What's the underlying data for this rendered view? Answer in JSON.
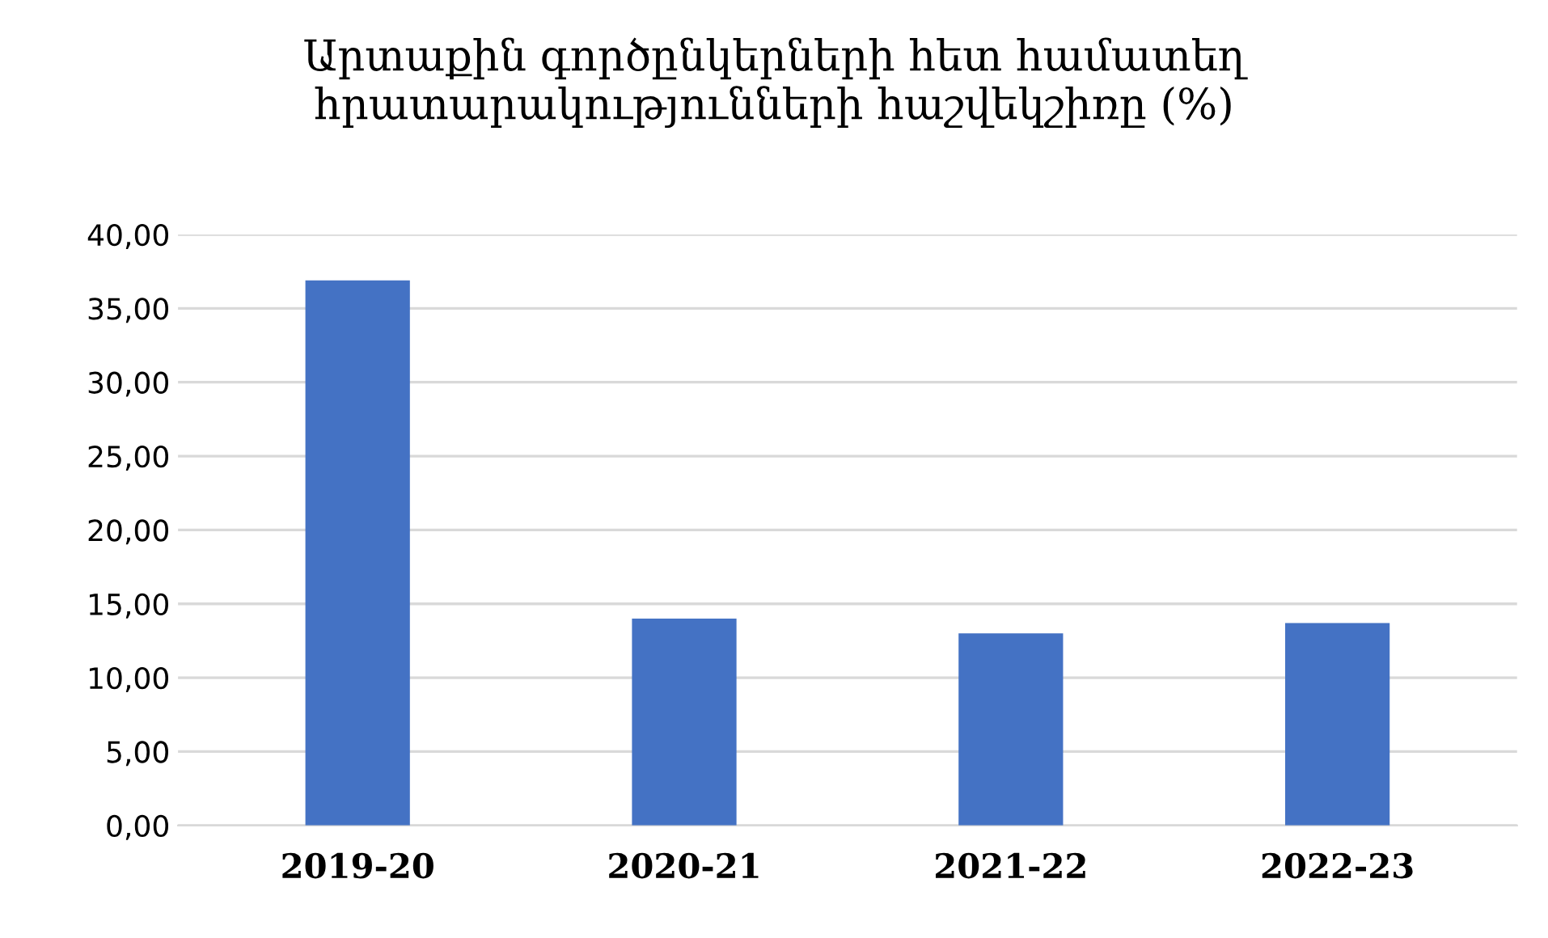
{
  "chart_data": {
    "type": "bar",
    "title": "Արտաքին գործընկերների հետ համատեղ\nհրատարակությունների հաշվեկշիռը (%)",
    "categories": [
      "2019-20",
      "2020-21",
      "2021-22",
      "2022-23"
    ],
    "values": [
      36.9,
      14.0,
      13.0,
      13.7
    ],
    "color": "#4472c4",
    "ylim": [
      0,
      40
    ],
    "yticks": [
      {
        "value": 0,
        "label": "0,00"
      },
      {
        "value": 5,
        "label": "5,00"
      },
      {
        "value": 10,
        "label": "10,00"
      },
      {
        "value": 15,
        "label": "15,00"
      },
      {
        "value": 20,
        "label": "20,00"
      },
      {
        "value": 25,
        "label": "25,00"
      },
      {
        "value": 30,
        "label": "30,00"
      },
      {
        "value": 35,
        "label": "35,00"
      },
      {
        "value": 40,
        "label": "40,00"
      }
    ],
    "grid": "y"
  }
}
